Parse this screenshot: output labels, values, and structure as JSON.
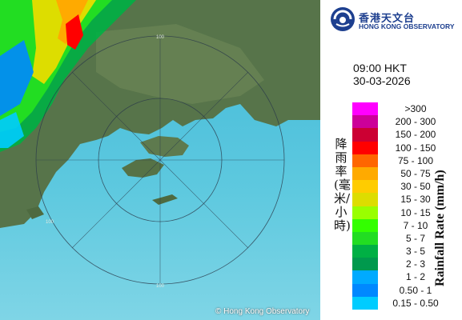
{
  "logo": {
    "chinese": "香港天文台",
    "english": "HONG KONG OBSERVATORY"
  },
  "time": "09:00 HKT",
  "date": "30-03-2026",
  "legend": [
    {
      "label": ">300",
      "color": "#ff00ff"
    },
    {
      "label": "200 - 300",
      "color": "#cc0099"
    },
    {
      "label": "150 - 200",
      "color": "#cc0033"
    },
    {
      "label": "100 - 150",
      "color": "#ff0000"
    },
    {
      "label": "75 - 100",
      "color": "#ff6600"
    },
    {
      "label": "50 - 75",
      "color": "#ffaa00"
    },
    {
      "label": "30 - 50",
      "color": "#ffcc00"
    },
    {
      "label": "15 - 30",
      "color": "#dddd00"
    },
    {
      "label": "10 - 15",
      "color": "#99ff00"
    },
    {
      "label": "7 - 10",
      "color": "#33ff00"
    },
    {
      "label": "5 - 7",
      "color": "#22dd22"
    },
    {
      "label": "3 - 5",
      "color": "#00b044"
    },
    {
      "label": "2 - 3",
      "color": "#00994d"
    },
    {
      "label": "1 - 2",
      "color": "#00aaff"
    },
    {
      "label": "0.50 - 1",
      "color": "#0088ff"
    },
    {
      "label": "0.15 - 0.50",
      "color": "#00ccff"
    }
  ],
  "legend_title_cn": "降雨率(毫米/小時)",
  "legend_title_en": "Rainfall Rate (mm/h)",
  "range_labels": {
    "top": "100",
    "left": "100",
    "bottom": "100"
  },
  "copyright": "© Hong Kong Observatory"
}
